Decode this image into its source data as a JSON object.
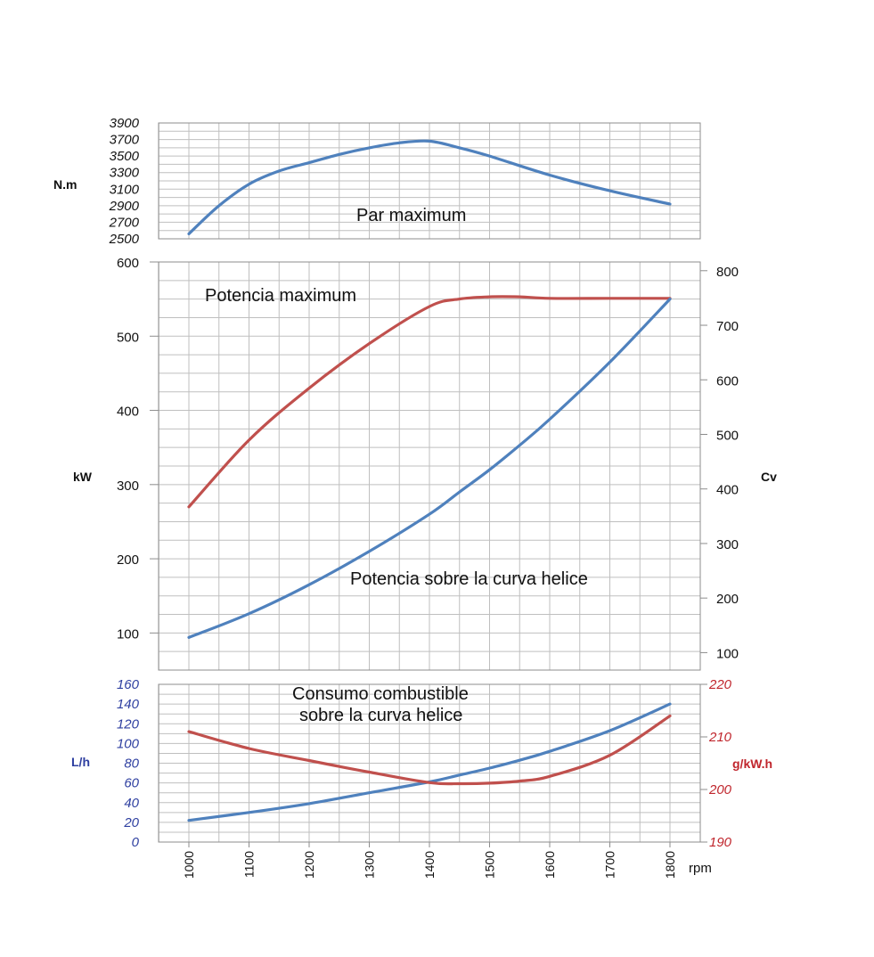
{
  "colors": {
    "blue": "#4F81BD",
    "red": "#C0504D",
    "grid": "#BFBFBF",
    "frame": "#8C8C8C",
    "text": "#111111",
    "left_bottom_axis": "#2E3FA0",
    "right_bottom_axis": "#C0262D"
  },
  "chart_data": [
    {
      "id": "torque",
      "type": "line",
      "annotation": "Par maximum",
      "ylabel": "N.m",
      "ylim": [
        2500,
        3900
      ],
      "yticks": [
        "2500",
        "2700",
        "2900",
        "3100",
        "3300",
        "3500",
        "3700",
        "3900"
      ],
      "x": [
        1000,
        1050,
        1100,
        1150,
        1200,
        1250,
        1300,
        1350,
        1400,
        1450,
        1500,
        1600,
        1700,
        1800
      ],
      "series": [
        {
          "color": "blue",
          "values": [
            2560,
            2900,
            3160,
            3320,
            3420,
            3520,
            3600,
            3660,
            3680,
            3600,
            3500,
            3270,
            3080,
            2920
          ]
        }
      ]
    },
    {
      "id": "power",
      "type": "line",
      "annotations": [
        "Potencia maximum",
        "Potencia sobre la curva helice"
      ],
      "ylabel_left": "kW",
      "ylabel_right": "Cv",
      "ylim": [
        50,
        600
      ],
      "yticks_left": [
        "100",
        "200",
        "300",
        "400",
        "500",
        "600"
      ],
      "yticks_right": [
        "100",
        "200",
        "300",
        "400",
        "500",
        "600",
        "700",
        "800"
      ],
      "x": [
        1000,
        1100,
        1200,
        1300,
        1400,
        1450,
        1500,
        1550,
        1600,
        1700,
        1800
      ],
      "series": [
        {
          "color": "red",
          "values": [
            270,
            360,
            430,
            490,
            540,
            550,
            553,
            553,
            551,
            551,
            551
          ]
        },
        {
          "color": "blue",
          "values": [
            94,
            126,
            165,
            210,
            260,
            290,
            320,
            353,
            388,
            465,
            550
          ]
        }
      ]
    },
    {
      "id": "consumption",
      "type": "line",
      "annotation": [
        "Consumo combustible",
        "sobre la curva helice"
      ],
      "ylabel_left": "L/h",
      "ylabel_right": "g/kW.h",
      "ylim_left": [
        0,
        160
      ],
      "ylim_right": [
        190,
        220
      ],
      "yticks_left": [
        "0",
        "20",
        "40",
        "60",
        "80",
        "100",
        "120",
        "140",
        "160"
      ],
      "yticks_right": [
        "190",
        "200",
        "210",
        "220"
      ],
      "x": [
        1000,
        1100,
        1200,
        1300,
        1400,
        1450,
        1500,
        1550,
        1600,
        1700,
        1800
      ],
      "xlabel": "rpm",
      "xticks": [
        "1000",
        "1100",
        "1200",
        "1300",
        "1400",
        "1500",
        "1600",
        "1700",
        "1800"
      ],
      "series": [
        {
          "color": "blue",
          "axis": "left",
          "values": [
            22,
            30,
            39,
            50,
            61,
            68,
            75,
            83,
            92,
            113,
            140
          ]
        },
        {
          "color": "red",
          "axis": "right",
          "values": [
            211,
            207.8,
            205.5,
            203.3,
            201.3,
            201.1,
            201.2,
            201.6,
            202.5,
            206.5,
            214
          ]
        }
      ]
    }
  ]
}
